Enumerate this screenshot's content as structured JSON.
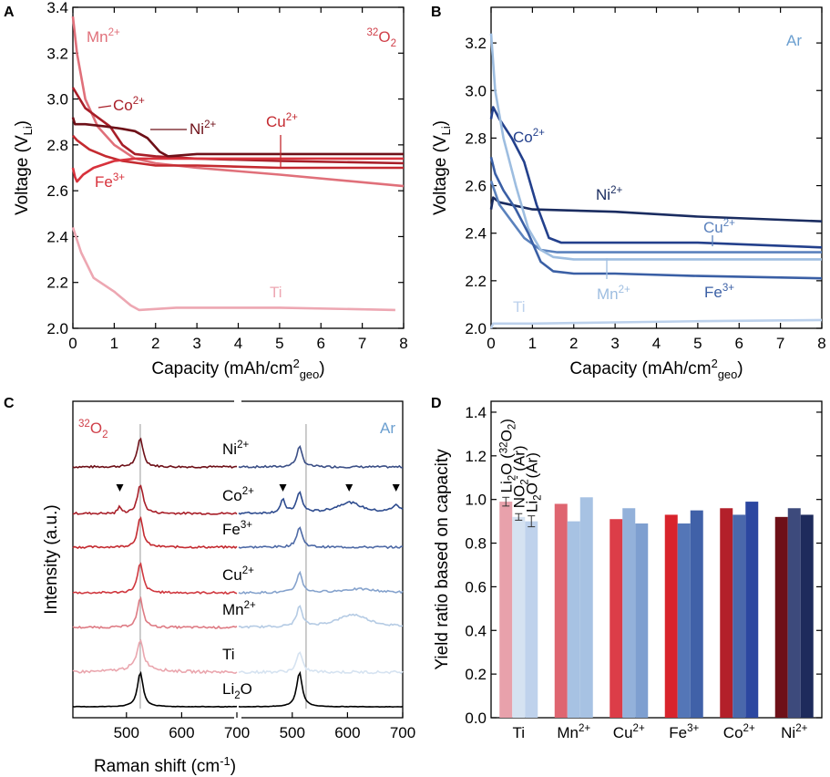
{
  "figure": {
    "panel_labels": [
      "A",
      "B",
      "C",
      "D"
    ]
  },
  "chart_data": [
    {
      "panel": "A",
      "type": "line",
      "corner_label": "32O2",
      "xlabel": "Capacity (mAh/cm2geo)",
      "ylabel": "Voltage (VLi)",
      "xlim": [
        0,
        8
      ],
      "ylim": [
        2.0,
        3.4
      ],
      "xticks": [
        0,
        1,
        2,
        3,
        4,
        5,
        6,
        7,
        8
      ],
      "yticks": [
        2.0,
        2.2,
        2.4,
        2.6,
        2.8,
        3.0,
        3.2,
        3.4
      ],
      "series": [
        {
          "name": "Mn2+",
          "color": "#e0707a",
          "x": [
            0,
            0.1,
            0.3,
            0.6,
            1.0,
            1.5,
            2.0,
            3,
            5,
            8
          ],
          "y": [
            3.36,
            3.2,
            3.0,
            2.88,
            2.8,
            2.74,
            2.72,
            2.7,
            2.67,
            2.62
          ]
        },
        {
          "name": "Co2+",
          "color": "#a81e28",
          "x": [
            0,
            0.1,
            0.3,
            0.6,
            0.9,
            1.2,
            1.5,
            2,
            3,
            5,
            8
          ],
          "y": [
            3.05,
            3.02,
            2.96,
            2.92,
            2.88,
            2.8,
            2.76,
            2.75,
            2.74,
            2.73,
            2.72
          ]
        },
        {
          "name": "Ni2+",
          "color": "#6e1018",
          "x": [
            0,
            0.05,
            0.3,
            0.8,
            1.2,
            1.5,
            1.8,
            2.1,
            2.3,
            3,
            5,
            8
          ],
          "y": [
            2.92,
            2.89,
            2.89,
            2.88,
            2.87,
            2.86,
            2.83,
            2.77,
            2.75,
            2.76,
            2.76,
            2.76
          ]
        },
        {
          "name": "Cu2+",
          "color": "#c42a30",
          "x": [
            0,
            0.1,
            0.4,
            0.8,
            1.2,
            1.6,
            2,
            3,
            5,
            8
          ],
          "y": [
            2.84,
            2.82,
            2.78,
            2.75,
            2.73,
            2.72,
            2.71,
            2.71,
            2.7,
            2.7
          ]
        },
        {
          "name": "Fe3+",
          "color": "#d8323c",
          "x": [
            0,
            0.05,
            0.1,
            0.25,
            0.5,
            1.0,
            1.5,
            2,
            3,
            5,
            8
          ],
          "y": [
            2.7,
            2.66,
            2.64,
            2.67,
            2.7,
            2.73,
            2.74,
            2.74,
            2.74,
            2.74,
            2.74
          ]
        },
        {
          "name": "Ti",
          "color": "#eda7b2",
          "x": [
            0,
            0.2,
            0.5,
            1.0,
            1.4,
            1.6,
            2.5,
            5,
            7.8
          ],
          "y": [
            2.44,
            2.33,
            2.22,
            2.16,
            2.1,
            2.08,
            2.09,
            2.09,
            2.08
          ]
        }
      ],
      "labels": {
        "mn": "Mn2+",
        "co": "Co2+",
        "ni": "Ni2+",
        "cu": "Cu2+",
        "fe": "Fe3+",
        "ti": "Ti"
      }
    },
    {
      "panel": "B",
      "type": "line",
      "corner_label": "Ar",
      "xlabel": "Capacity (mAh/cm2geo)",
      "ylabel": "Voltage (VLi)",
      "xlim": [
        0,
        8
      ],
      "ylim": [
        2.0,
        3.35
      ],
      "xticks": [
        0,
        1,
        2,
        3,
        4,
        5,
        6,
        7,
        8
      ],
      "yticks": [
        2.0,
        2.2,
        2.4,
        2.6,
        2.8,
        3.0,
        3.2
      ],
      "series": [
        {
          "name": "Co2+",
          "color": "#23408c",
          "x": [
            0,
            0.05,
            0.2,
            0.5,
            0.8,
            1.1,
            1.4,
            1.7,
            2.5,
            5,
            8
          ],
          "y": [
            2.88,
            2.93,
            2.88,
            2.8,
            2.7,
            2.52,
            2.38,
            2.36,
            2.36,
            2.36,
            2.34
          ]
        },
        {
          "name": "Ni2+",
          "color": "#1a2c60",
          "x": [
            0,
            0.05,
            0.2,
            1,
            3,
            5,
            8
          ],
          "y": [
            2.5,
            2.55,
            2.53,
            2.5,
            2.49,
            2.47,
            2.45
          ]
        },
        {
          "name": "Cu2+",
          "color": "#5b82bd",
          "x": [
            0,
            0.2,
            0.5,
            0.8,
            1.2,
            1.6,
            3,
            5,
            8
          ],
          "y": [
            2.62,
            2.52,
            2.45,
            2.38,
            2.33,
            2.32,
            2.32,
            2.32,
            2.32
          ]
        },
        {
          "name": "Mn2+",
          "color": "#9dbde0",
          "x": [
            0,
            0.1,
            0.3,
            0.6,
            0.9,
            1.2,
            1.5,
            2,
            3,
            5,
            8
          ],
          "y": [
            3.24,
            3.0,
            2.8,
            2.6,
            2.42,
            2.33,
            2.3,
            2.29,
            2.29,
            2.29,
            2.29
          ]
        },
        {
          "name": "Fe3+",
          "color": "#3a5fa5",
          "x": [
            0,
            0.1,
            0.3,
            0.6,
            0.9,
            1.2,
            1.5,
            2,
            3,
            5,
            8
          ],
          "y": [
            2.72,
            2.65,
            2.58,
            2.5,
            2.4,
            2.28,
            2.24,
            2.23,
            2.23,
            2.22,
            2.21
          ]
        },
        {
          "name": "Ti",
          "color": "#bcd1ec",
          "x": [
            0,
            0.05,
            0.2,
            1,
            3,
            5,
            8
          ],
          "y": [
            2.0,
            2.02,
            2.02,
            2.02,
            2.025,
            2.03,
            2.035
          ]
        }
      ],
      "labels": {
        "co": "Co2+",
        "ni": "Ni2+",
        "cu": "Cu2+",
        "mn": "Mn2+",
        "fe": "Fe3+",
        "ti": "Ti"
      }
    },
    {
      "panel": "C",
      "type": "line",
      "corner_label_left": "32O2",
      "corner_label_right": "Ar",
      "xlabel": "Raman shift (cm-1)",
      "ylabel": "Intensity (a.u.)",
      "xticks_left": [
        500,
        600,
        700
      ],
      "xticks_right": [
        500,
        600,
        700
      ],
      "xlim": [
        400,
        700
      ],
      "reference_line_cm": 525,
      "traces": [
        {
          "name": "Ni2+",
          "left_color": "#6e1018",
          "right_color": "#3b4f86"
        },
        {
          "name": "Co2+",
          "left_color": "#a81e28",
          "right_color": "#2d4b8e"
        },
        {
          "name": "Fe3+",
          "left_color": "#c42a30",
          "right_color": "#4e6aa6"
        },
        {
          "name": "Cu2+",
          "left_color": "#d0383f",
          "right_color": "#86a3cd"
        },
        {
          "name": "Mn2+",
          "left_color": "#de7b84",
          "right_color": "#b5cbe4"
        },
        {
          "name": "Ti",
          "left_color": "#eaa6ae",
          "right_color": "#d6e3f1"
        },
        {
          "name": "Li2O",
          "left_color": "#000000",
          "right_color": "#000000"
        }
      ],
      "markers": [
        {
          "side": "left",
          "trace": "Co2+",
          "cm": 488
        },
        {
          "side": "right",
          "trace": "Co2+",
          "cm": 483
        },
        {
          "side": "right",
          "trace": "Co2+",
          "cm": 603
        },
        {
          "side": "right",
          "trace": "Co2+",
          "cm": 688
        }
      ]
    },
    {
      "panel": "D",
      "type": "bar",
      "ylabel": "Yield ratio based on capacity",
      "ylim": [
        0,
        1.45
      ],
      "yticks": [
        0.0,
        0.2,
        0.4,
        0.6,
        0.8,
        1.0,
        1.2,
        1.4
      ],
      "categories": [
        "Ti",
        "Mn2+",
        "Cu2+",
        "Fe3+",
        "Co2+",
        "Ni2+"
      ],
      "series": [
        {
          "name": "Li2O (32O2)",
          "values": [
            0.99,
            0.98,
            0.91,
            0.93,
            0.96,
            0.92
          ],
          "colors": [
            "#e8a1ab",
            "#df6570",
            "#dc3d48",
            "#d8232c",
            "#b3202a",
            "#6e1018"
          ]
        },
        {
          "name": "NO2- (Ar)",
          "values": [
            0.92,
            0.9,
            0.96,
            0.89,
            0.93,
            0.96
          ],
          "colors": [
            "#d5e2f1",
            "#a7c2e3",
            "#93b1da",
            "#5476b7",
            "#4a68ab",
            "#3d4a7c"
          ]
        },
        {
          "name": "Li2O (Ar)",
          "values": [
            0.9,
            1.01,
            0.89,
            0.95,
            0.99,
            0.93
          ],
          "colors": [
            "#bfd2ec",
            "#a7c2e3",
            "#7e9fd0",
            "#4061a8",
            "#2c47a0",
            "#1e2b5c"
          ]
        }
      ],
      "error_bars": {
        "Li2O (32O2)": 0.02,
        "NO2- (Ar)": 0.015,
        "Li2O (Ar)": 0.025
      },
      "legend_labels": [
        "Li2O (32O2)",
        "NO2- (Ar)",
        "Li2O (Ar)"
      ]
    }
  ]
}
